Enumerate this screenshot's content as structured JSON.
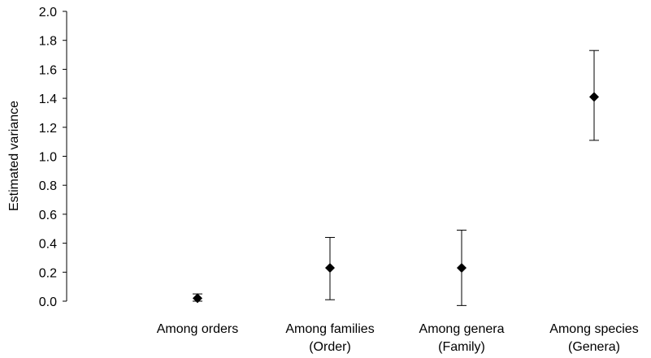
{
  "chart_data": {
    "type": "scatter",
    "title": "",
    "xlabel": "",
    "ylabel": "Estimated variance",
    "ylim": [
      0.0,
      2.0
    ],
    "yticks": [
      "0.0",
      "0.2",
      "0.4",
      "0.6",
      "0.8",
      "1.0",
      "1.2",
      "1.4",
      "1.6",
      "1.8",
      "2.0"
    ],
    "grid": false,
    "legend": "none",
    "marker": "diamond",
    "marker_color": "#000000",
    "categories": [
      [
        "Among orders"
      ],
      [
        "Among families",
        "(Order)"
      ],
      [
        "Among genera",
        "(Family)"
      ],
      [
        "Among species",
        "(Genera)"
      ]
    ],
    "values": [
      0.02,
      0.23,
      0.23,
      1.41
    ],
    "error_low": [
      0.0,
      0.01,
      -0.03,
      1.11
    ],
    "error_high": [
      0.05,
      0.44,
      0.49,
      1.73
    ]
  }
}
